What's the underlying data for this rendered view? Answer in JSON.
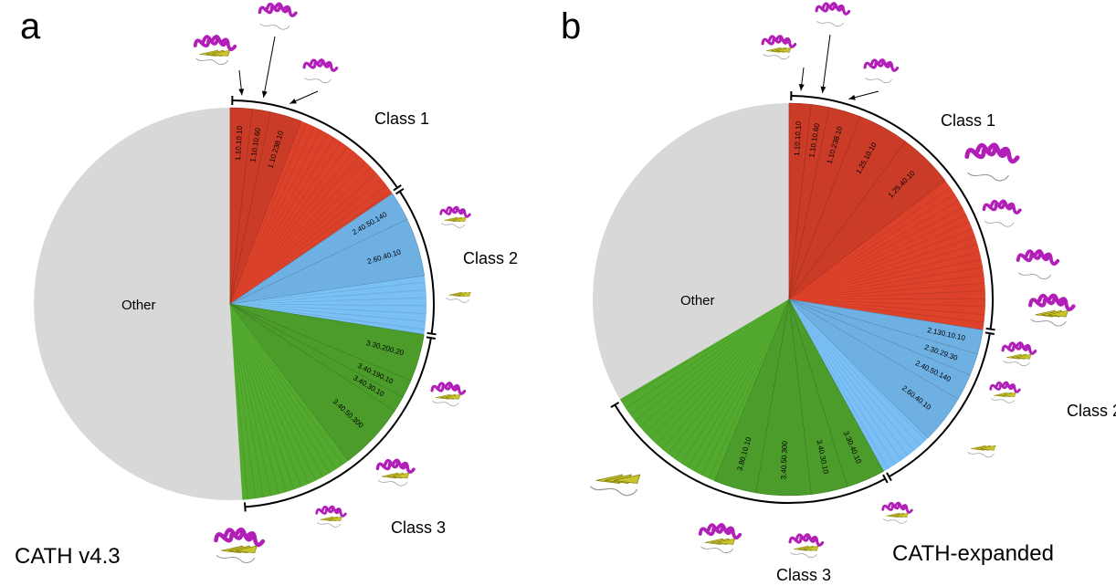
{
  "figure": {
    "colors": {
      "class1": "#d9412a",
      "class2": "#77bdf4",
      "class3": "#52a82e",
      "other": "#d8d8d8",
      "protein_helix": "#b21fb8",
      "protein_sheet": "#c9c52a"
    }
  },
  "chart_data": [
    {
      "type": "pie",
      "panel": "a",
      "label": "CATH v4.3",
      "categories": [
        "Class 1",
        "Class 2",
        "Class 3",
        "Other"
      ],
      "values": [
        15.5,
        12.0,
        21.5,
        51.0
      ],
      "unit": "percent (estimated)",
      "class_labels": [
        "Class 1",
        "Class 2",
        "Class 3"
      ],
      "other_label": "Other",
      "superfamilies": [
        {
          "id": "1.10.10.10",
          "class": "Class 1",
          "value": 1.8
        },
        {
          "id": "1.10.10.60",
          "class": "Class 1",
          "value": 1.5
        },
        {
          "id": "1.10.238.10",
          "class": "Class 1",
          "value": 2.6
        },
        {
          "id": "2.40.50.140",
          "class": "Class 2",
          "value": 2.4
        },
        {
          "id": "2.60.40.10",
          "class": "Class 2",
          "value": 4.8
        },
        {
          "id": "3.30.200.20",
          "class": "Class 3",
          "value": 3.9
        },
        {
          "id": "3.40.190.10",
          "class": "Class 3",
          "value": 1.5
        },
        {
          "id": "3.40.30.10",
          "class": "Class 3",
          "value": 1.3
        },
        {
          "id": "3.40.50.300",
          "class": "Class 3",
          "value": 5.5
        }
      ]
    },
    {
      "type": "pie",
      "panel": "b",
      "label": "CATH-expanded",
      "categories": [
        "Class 1",
        "Class 2",
        "Class 3",
        "Other"
      ],
      "values": [
        27.5,
        14.5,
        24.5,
        33.5
      ],
      "unit": "percent (estimated)",
      "class_labels": [
        "Class 1",
        "Class 2",
        "Class 3"
      ],
      "other_label": "Other",
      "superfamilies": [
        {
          "id": "1.10.10.10",
          "class": "Class 1",
          "value": 1.8
        },
        {
          "id": "1.10.10.60",
          "class": "Class 1",
          "value": 1.5
        },
        {
          "id": "1.10.238.10",
          "class": "Class 1",
          "value": 2.6
        },
        {
          "id": "1.25.10.10",
          "class": "Class 1",
          "value": 4.2
        },
        {
          "id": "1.25.40.10",
          "class": "Class 1",
          "value": 4.5
        },
        {
          "id": "2.130.10.10",
          "class": "Class 2",
          "value": 2.0
        },
        {
          "id": "2.30.29.30",
          "class": "Class 2",
          "value": 1.8
        },
        {
          "id": "2.40.50.140",
          "class": "Class 2",
          "value": 2.2
        },
        {
          "id": "2.60.40.10",
          "class": "Class 2",
          "value": 4.0
        },
        {
          "id": "3.30.40.10",
          "class": "Class 3",
          "value": 3.2
        },
        {
          "id": "3.40.30.10",
          "class": "Class 3",
          "value": 3.0
        },
        {
          "id": "3.40.50.300",
          "class": "Class 3",
          "value": 4.5
        },
        {
          "id": "3.80.10.10",
          "class": "Class 3",
          "value": 3.5
        }
      ]
    }
  ]
}
